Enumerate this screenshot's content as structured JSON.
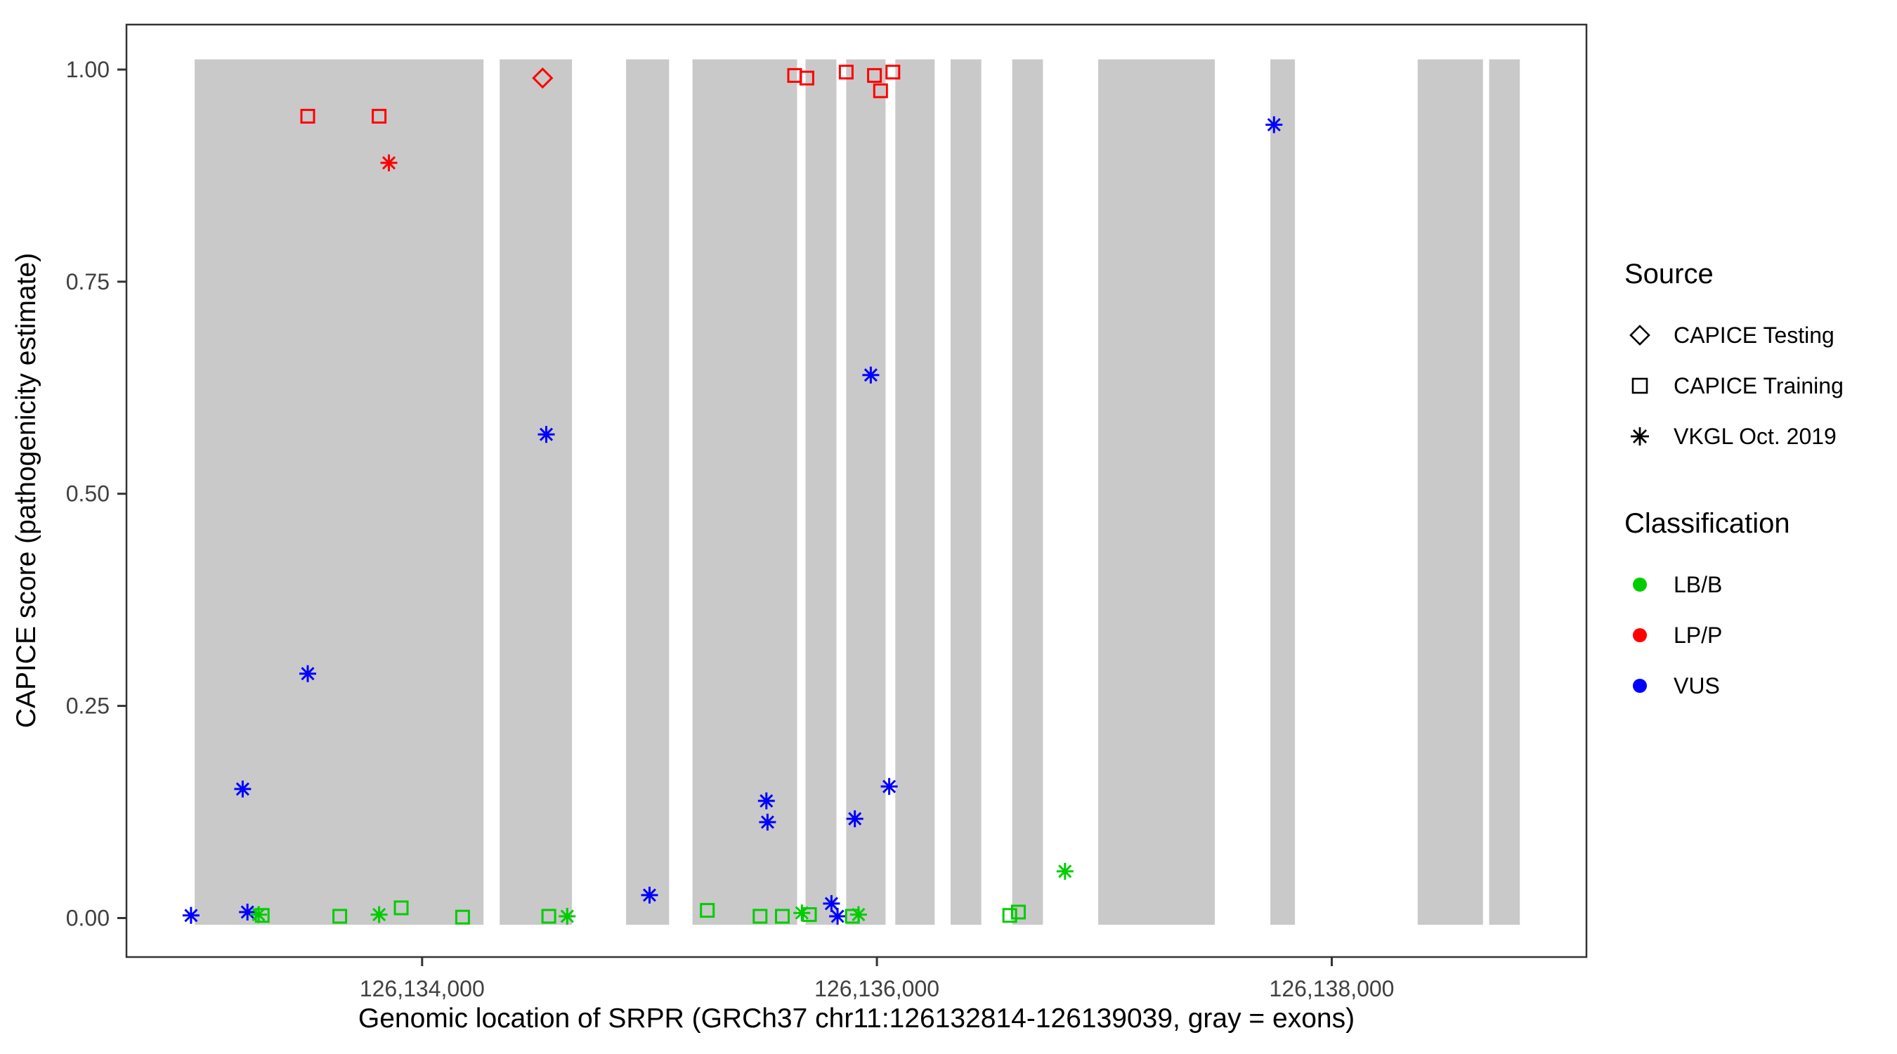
{
  "axes": {
    "x_label": "Genomic location of SRPR (GRCh37 chr11:126132814-126139039, gray = exons)",
    "y_label": "CAPICE score (pathogenicity estimate)"
  },
  "legend": {
    "source": {
      "title": "Source",
      "items": [
        {
          "label": "CAPICE Testing",
          "shape": "diamond-open"
        },
        {
          "label": "CAPICE Training",
          "shape": "square-open"
        },
        {
          "label": "VKGL Oct. 2019",
          "shape": "asterisk"
        }
      ]
    },
    "classification": {
      "title": "Classification",
      "items": [
        {
          "label": "LB/B",
          "color": "#00CD00"
        },
        {
          "label": "LP/P",
          "color": "#FF0000"
        },
        {
          "label": "VUS",
          "color": "#0000FF"
        }
      ]
    }
  },
  "chart_data": {
    "type": "scatter",
    "title": "",
    "xlabel": "Genomic location of SRPR (GRCh37 chr11:126132814-126139039, gray = exons)",
    "ylabel": "CAPICE score (pathogenicity estimate)",
    "grid": "off",
    "legend_position": "right",
    "x_axis": {
      "domain": [
        126132700,
        126139120
      ],
      "ticks": [
        {
          "value": 126134000,
          "label": "126,134,000"
        },
        {
          "value": 126136000,
          "label": "126,136,000"
        },
        {
          "value": 126138000,
          "label": "126,138,000"
        }
      ]
    },
    "y_axis": {
      "domain": [
        -0.046,
        1.053
      ],
      "ticks": [
        {
          "value": 0.0,
          "label": "0.00"
        },
        {
          "value": 0.25,
          "label": "0.25"
        },
        {
          "value": 0.5,
          "label": "0.50"
        },
        {
          "value": 0.75,
          "label": "0.75"
        },
        {
          "value": 1.0,
          "label": "1.00"
        }
      ]
    },
    "exon_color": "#C9C9C9",
    "exon_band": {
      "ymin": -0.008,
      "ymax": 1.012
    },
    "exons": [
      [
        126133000,
        126134270
      ],
      [
        126134341,
        126134659
      ],
      [
        126134897,
        126135086
      ],
      [
        126135189,
        126135649
      ],
      [
        126135686,
        126135822
      ],
      [
        126135865,
        126136038
      ],
      [
        126136081,
        126136254
      ],
      [
        126136324,
        126136459
      ],
      [
        126136595,
        126136730
      ],
      [
        126136973,
        126137486
      ],
      [
        126137730,
        126137838
      ],
      [
        126138378,
        126138665
      ],
      [
        126138692,
        126138827
      ]
    ],
    "series": [
      {
        "name": "LP/P - CAPICE Training",
        "classification": "LP/P",
        "source": "CAPICE Training",
        "shape": "square-open",
        "color": "#FF0000",
        "points": [
          [
            126133497,
            0.945
          ],
          [
            126133811,
            0.945
          ],
          [
            126135638,
            0.993
          ],
          [
            126135692,
            0.99
          ],
          [
            126135865,
            0.997
          ],
          [
            126135989,
            0.993
          ],
          [
            126136016,
            0.975
          ],
          [
            126136070,
            0.997
          ]
        ]
      },
      {
        "name": "LP/P - CAPICE Testing",
        "classification": "LP/P",
        "source": "CAPICE Testing",
        "shape": "diamond-open",
        "color": "#FF0000",
        "points": [
          [
            126134530,
            0.99
          ]
        ]
      },
      {
        "name": "LP/P - VKGL Oct. 2019",
        "classification": "LP/P",
        "source": "VKGL Oct. 2019",
        "shape": "asterisk",
        "color": "#FF0000",
        "points": [
          [
            126133854,
            0.89
          ]
        ]
      },
      {
        "name": "VUS - VKGL Oct. 2019",
        "classification": "VUS",
        "source": "VKGL Oct. 2019",
        "shape": "asterisk",
        "color": "#0000FF",
        "points": [
          [
            126132984,
            0.003
          ],
          [
            126133211,
            0.152
          ],
          [
            126133232,
            0.007
          ],
          [
            126133497,
            0.288
          ],
          [
            126134546,
            0.57
          ],
          [
            126135000,
            0.027
          ],
          [
            126135514,
            0.138
          ],
          [
            126135519,
            0.113
          ],
          [
            126135800,
            0.017
          ],
          [
            126135827,
            0.002
          ],
          [
            126135903,
            0.117
          ],
          [
            126135973,
            0.64
          ],
          [
            126136054,
            0.155
          ],
          [
            126137746,
            0.935
          ]
        ]
      },
      {
        "name": "LB/B - VKGL Oct. 2019",
        "classification": "LB/B",
        "source": "VKGL Oct. 2019",
        "shape": "asterisk",
        "color": "#00CD00",
        "points": [
          [
            126133281,
            0.004
          ],
          [
            126133811,
            0.004
          ],
          [
            126134638,
            0.002
          ],
          [
            126135670,
            0.006
          ],
          [
            126135919,
            0.004
          ],
          [
            126136827,
            0.055
          ]
        ]
      },
      {
        "name": "LB/B - CAPICE Training",
        "classification": "LB/B",
        "source": "CAPICE Training",
        "shape": "square-open",
        "color": "#00CD00",
        "points": [
          [
            126133297,
            0.003
          ],
          [
            126133638,
            0.002
          ],
          [
            126133908,
            0.012
          ],
          [
            126134178,
            0.001
          ],
          [
            126134557,
            0.002
          ],
          [
            126135254,
            0.009
          ],
          [
            126135486,
            0.002
          ],
          [
            126135584,
            0.002
          ],
          [
            126135703,
            0.004
          ],
          [
            126135892,
            0.002
          ],
          [
            126136584,
            0.003
          ],
          [
            126136622,
            0.007
          ]
        ]
      }
    ]
  }
}
